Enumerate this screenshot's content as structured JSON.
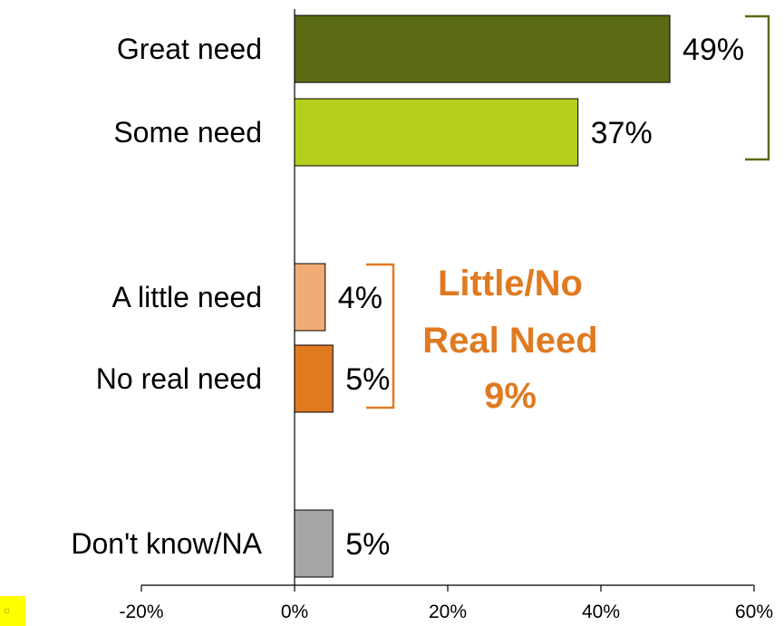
{
  "chart_data": {
    "type": "bar",
    "orientation": "horizontal",
    "title": "",
    "xlabel": "",
    "ylabel": "",
    "xlim": [
      -20,
      60
    ],
    "x_ticks": [
      -20,
      0,
      20,
      40,
      60
    ],
    "x_tick_labels": [
      "-20%",
      "0%",
      "20%",
      "40%",
      "60%"
    ],
    "grid": false,
    "categories": [
      "Great need",
      "Some need",
      "A little need",
      "No real need",
      "Don't know/NA"
    ],
    "values": [
      49,
      37,
      4,
      5,
      5
    ],
    "value_labels": [
      "49%",
      "37%",
      "4%",
      "5%",
      "5%"
    ],
    "colors": [
      "#5a6b14",
      "#b5cf1b",
      "#f0ac74",
      "#e07a21",
      "#a6a6a6"
    ],
    "groups": [
      {
        "label": "",
        "members": [
          "Great need",
          "Some need"
        ],
        "bracket_color": "#5a6b14"
      },
      {
        "label": "Little/No Real Need 9%",
        "label_lines": [
          "Little/No",
          "Real Need",
          "9%"
        ],
        "members": [
          "A little need",
          "No real need"
        ],
        "bracket_color": "#e07a21"
      }
    ]
  }
}
